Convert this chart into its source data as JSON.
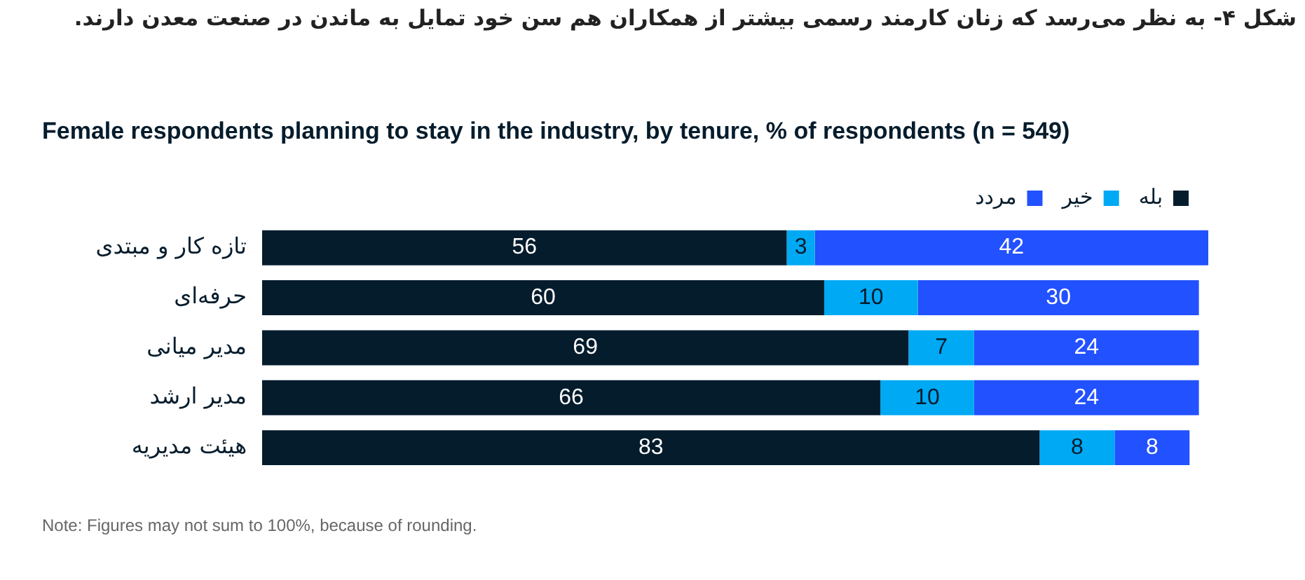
{
  "chart_data": {
    "type": "bar",
    "orientation": "horizontal",
    "stacked": true,
    "title": "شکل ۴- به نظر می‌رسد که زنان کارمند رسمی بیشتر از همکاران هم سن خود تمایل به ماندن در صنعت معدن دارند.",
    "subtitle": "Female respondents planning to stay in the industry, by tenure, % of respondents (n = 549)",
    "categories": [
      "تازه کار و مبتدی",
      "حرفه‌ای",
      "مدیر میانی",
      "مدیر ارشد",
      "هیئت مدیریه"
    ],
    "series": [
      {
        "name": "بله",
        "color": "#051c2c",
        "values": [
          56,
          60,
          69,
          66,
          83
        ]
      },
      {
        "name": "خیر",
        "color": "#00a9f4",
        "values": [
          3,
          10,
          7,
          10,
          8
        ]
      },
      {
        "name": "مردد",
        "color": "#2251ff",
        "values": [
          42,
          30,
          24,
          24,
          8
        ]
      }
    ],
    "xlim": [
      0,
      101
    ],
    "tick_labels": "y",
    "legend": "top right",
    "data_labels": true,
    "annotations": [
      "Note: Figures may not sum to 100%, because of rounding."
    ]
  }
}
